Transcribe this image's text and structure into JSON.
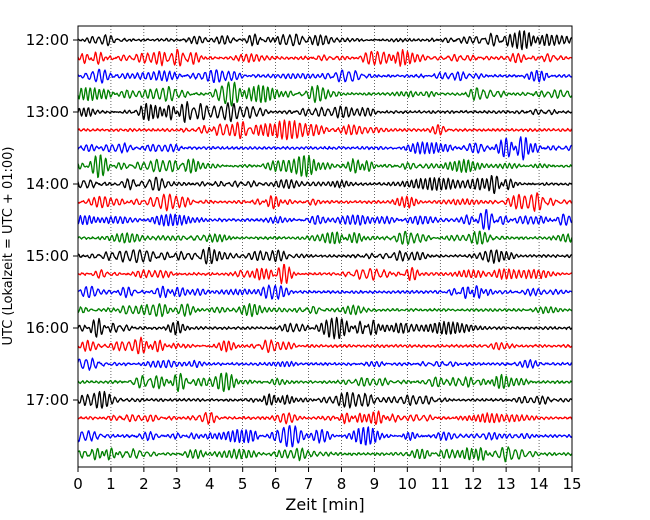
{
  "chart_data": {
    "type": "line",
    "description_of_series": "Helicorder: 24 traces, one per 15-minute interval, cycling black/red/blue/green",
    "xlabel": "Zeit  [min]",
    "ylabel": "UTC (Lokalzeit = UTC + 01:00)",
    "xlim": [
      0,
      15
    ],
    "x_ticks": [
      0,
      1,
      2,
      3,
      4,
      5,
      6,
      7,
      8,
      9,
      10,
      11,
      12,
      13,
      14,
      15
    ],
    "y_ticks": [
      "12:00",
      "13:00",
      "14:00",
      "15:00",
      "16:00",
      "17:00"
    ],
    "grid": "vertical-dotted",
    "trace_colors": [
      "#000000",
      "#ff0000",
      "#0000ff",
      "#008000"
    ],
    "trace_count": 24,
    "trace_interval_minutes": 15,
    "start_time": "12:00"
  }
}
